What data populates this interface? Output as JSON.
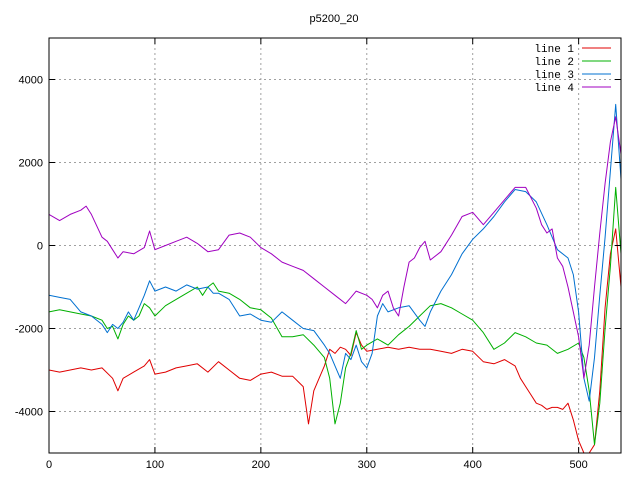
{
  "chart_data": {
    "type": "line",
    "title": "p5200_20",
    "xlabel": "",
    "ylabel": "",
    "xlim": [
      0,
      540
    ],
    "ylim": [
      -5000,
      5000
    ],
    "xticks": [
      0,
      100,
      200,
      300,
      400,
      500
    ],
    "yticks": [
      -4000,
      -2000,
      0,
      2000,
      4000
    ],
    "grid": true,
    "legend_position": "top-right",
    "series": [
      {
        "name": "line 1",
        "color": "#e00000",
        "points": [
          [
            0,
            -3000
          ],
          [
            10,
            -3050
          ],
          [
            20,
            -3000
          ],
          [
            30,
            -2950
          ],
          [
            40,
            -3000
          ],
          [
            50,
            -2950
          ],
          [
            60,
            -3200
          ],
          [
            65,
            -3500
          ],
          [
            70,
            -3200
          ],
          [
            80,
            -3050
          ],
          [
            90,
            -2900
          ],
          [
            95,
            -2750
          ],
          [
            100,
            -3100
          ],
          [
            110,
            -3050
          ],
          [
            120,
            -2950
          ],
          [
            130,
            -2900
          ],
          [
            140,
            -2850
          ],
          [
            150,
            -3050
          ],
          [
            160,
            -2800
          ],
          [
            170,
            -3000
          ],
          [
            180,
            -3200
          ],
          [
            190,
            -3250
          ],
          [
            200,
            -3100
          ],
          [
            210,
            -3050
          ],
          [
            220,
            -3150
          ],
          [
            230,
            -3150
          ],
          [
            240,
            -3400
          ],
          [
            245,
            -4300
          ],
          [
            250,
            -3500
          ],
          [
            255,
            -3200
          ],
          [
            260,
            -2900
          ],
          [
            265,
            -2500
          ],
          [
            270,
            -2600
          ],
          [
            275,
            -2450
          ],
          [
            280,
            -2500
          ],
          [
            285,
            -2650
          ],
          [
            290,
            -2100
          ],
          [
            295,
            -2400
          ],
          [
            300,
            -2550
          ],
          [
            310,
            -2500
          ],
          [
            320,
            -2450
          ],
          [
            330,
            -2500
          ],
          [
            340,
            -2450
          ],
          [
            350,
            -2500
          ],
          [
            360,
            -2500
          ],
          [
            370,
            -2550
          ],
          [
            380,
            -2600
          ],
          [
            390,
            -2500
          ],
          [
            400,
            -2550
          ],
          [
            410,
            -2800
          ],
          [
            420,
            -2850
          ],
          [
            430,
            -2750
          ],
          [
            440,
            -2900
          ],
          [
            445,
            -3200
          ],
          [
            450,
            -3400
          ],
          [
            455,
            -3600
          ],
          [
            460,
            -3800
          ],
          [
            465,
            -3850
          ],
          [
            470,
            -3950
          ],
          [
            475,
            -3900
          ],
          [
            480,
            -3900
          ],
          [
            485,
            -3950
          ],
          [
            490,
            -3800
          ],
          [
            495,
            -4200
          ],
          [
            500,
            -4700
          ],
          [
            505,
            -5000
          ],
          [
            510,
            -5000
          ],
          [
            515,
            -4800
          ],
          [
            520,
            -3500
          ],
          [
            525,
            -1500
          ],
          [
            530,
            -200
          ],
          [
            535,
            400
          ],
          [
            540,
            -1000
          ]
        ]
      },
      {
        "name": "line 2",
        "color": "#00b000",
        "points": [
          [
            0,
            -1600
          ],
          [
            10,
            -1550
          ],
          [
            20,
            -1600
          ],
          [
            30,
            -1650
          ],
          [
            40,
            -1700
          ],
          [
            50,
            -1800
          ],
          [
            55,
            -2000
          ],
          [
            60,
            -1950
          ],
          [
            65,
            -2250
          ],
          [
            70,
            -1900
          ],
          [
            75,
            -1700
          ],
          [
            80,
            -1800
          ],
          [
            85,
            -1700
          ],
          [
            90,
            -1400
          ],
          [
            95,
            -1500
          ],
          [
            100,
            -1700
          ],
          [
            110,
            -1450
          ],
          [
            120,
            -1300
          ],
          [
            130,
            -1150
          ],
          [
            140,
            -1000
          ],
          [
            145,
            -1200
          ],
          [
            150,
            -1000
          ],
          [
            155,
            -900
          ],
          [
            160,
            -1100
          ],
          [
            170,
            -1150
          ],
          [
            180,
            -1300
          ],
          [
            190,
            -1500
          ],
          [
            200,
            -1550
          ],
          [
            210,
            -1750
          ],
          [
            220,
            -2200
          ],
          [
            230,
            -2200
          ],
          [
            240,
            -2150
          ],
          [
            250,
            -2400
          ],
          [
            260,
            -2700
          ],
          [
            265,
            -3200
          ],
          [
            270,
            -4300
          ],
          [
            275,
            -3800
          ],
          [
            280,
            -2950
          ],
          [
            285,
            -2600
          ],
          [
            290,
            -2050
          ],
          [
            295,
            -2500
          ],
          [
            300,
            -2400
          ],
          [
            310,
            -2250
          ],
          [
            320,
            -2400
          ],
          [
            330,
            -2150
          ],
          [
            340,
            -1950
          ],
          [
            350,
            -1700
          ],
          [
            360,
            -1450
          ],
          [
            370,
            -1400
          ],
          [
            380,
            -1500
          ],
          [
            390,
            -1650
          ],
          [
            400,
            -1800
          ],
          [
            410,
            -2100
          ],
          [
            420,
            -2500
          ],
          [
            430,
            -2350
          ],
          [
            440,
            -2100
          ],
          [
            450,
            -2200
          ],
          [
            460,
            -2350
          ],
          [
            470,
            -2400
          ],
          [
            480,
            -2600
          ],
          [
            490,
            -2500
          ],
          [
            500,
            -2350
          ],
          [
            505,
            -2700
          ],
          [
            510,
            -3500
          ],
          [
            515,
            -4800
          ],
          [
            520,
            -3800
          ],
          [
            525,
            -2000
          ],
          [
            530,
            -500
          ],
          [
            535,
            1400
          ],
          [
            540,
            -200
          ]
        ]
      },
      {
        "name": "line 3",
        "color": "#0070d0",
        "points": [
          [
            0,
            -1200
          ],
          [
            10,
            -1250
          ],
          [
            20,
            -1300
          ],
          [
            30,
            -1600
          ],
          [
            40,
            -1700
          ],
          [
            50,
            -1900
          ],
          [
            55,
            -2100
          ],
          [
            60,
            -1900
          ],
          [
            65,
            -2000
          ],
          [
            70,
            -1850
          ],
          [
            75,
            -1600
          ],
          [
            80,
            -1800
          ],
          [
            85,
            -1500
          ],
          [
            90,
            -1200
          ],
          [
            95,
            -850
          ],
          [
            100,
            -1100
          ],
          [
            110,
            -1000
          ],
          [
            120,
            -1100
          ],
          [
            130,
            -950
          ],
          [
            140,
            -1050
          ],
          [
            150,
            -1000
          ],
          [
            155,
            -1150
          ],
          [
            160,
            -1150
          ],
          [
            170,
            -1300
          ],
          [
            180,
            -1700
          ],
          [
            190,
            -1650
          ],
          [
            200,
            -1800
          ],
          [
            210,
            -1850
          ],
          [
            220,
            -1600
          ],
          [
            230,
            -1800
          ],
          [
            240,
            -2000
          ],
          [
            250,
            -2050
          ],
          [
            260,
            -2400
          ],
          [
            265,
            -2600
          ],
          [
            270,
            -2900
          ],
          [
            275,
            -3200
          ],
          [
            280,
            -2600
          ],
          [
            285,
            -2750
          ],
          [
            290,
            -2400
          ],
          [
            295,
            -2800
          ],
          [
            300,
            -2950
          ],
          [
            305,
            -2600
          ],
          [
            310,
            -1700
          ],
          [
            315,
            -1400
          ],
          [
            320,
            -1600
          ],
          [
            330,
            -1500
          ],
          [
            340,
            -1450
          ],
          [
            350,
            -1800
          ],
          [
            355,
            -1950
          ],
          [
            360,
            -1600
          ],
          [
            370,
            -1100
          ],
          [
            380,
            -700
          ],
          [
            390,
            -200
          ],
          [
            400,
            150
          ],
          [
            410,
            400
          ],
          [
            420,
            700
          ],
          [
            430,
            1050
          ],
          [
            440,
            1350
          ],
          [
            450,
            1300
          ],
          [
            460,
            1050
          ],
          [
            470,
            500
          ],
          [
            480,
            -100
          ],
          [
            490,
            -300
          ],
          [
            495,
            -700
          ],
          [
            500,
            -1600
          ],
          [
            505,
            -3200
          ],
          [
            510,
            -3750
          ],
          [
            515,
            -2700
          ],
          [
            520,
            -1200
          ],
          [
            525,
            200
          ],
          [
            530,
            1800
          ],
          [
            535,
            3400
          ],
          [
            540,
            1600
          ]
        ]
      },
      {
        "name": "line 4",
        "color": "#a000c0",
        "points": [
          [
            0,
            750
          ],
          [
            10,
            600
          ],
          [
            20,
            750
          ],
          [
            30,
            850
          ],
          [
            35,
            950
          ],
          [
            40,
            750
          ],
          [
            50,
            200
          ],
          [
            55,
            100
          ],
          [
            60,
            -100
          ],
          [
            65,
            -300
          ],
          [
            70,
            -150
          ],
          [
            80,
            -200
          ],
          [
            90,
            -50
          ],
          [
            95,
            350
          ],
          [
            100,
            -100
          ],
          [
            110,
            0
          ],
          [
            120,
            100
          ],
          [
            130,
            200
          ],
          [
            140,
            50
          ],
          [
            150,
            -150
          ],
          [
            160,
            -100
          ],
          [
            170,
            250
          ],
          [
            180,
            300
          ],
          [
            190,
            200
          ],
          [
            200,
            -50
          ],
          [
            210,
            -200
          ],
          [
            220,
            -400
          ],
          [
            230,
            -500
          ],
          [
            240,
            -600
          ],
          [
            250,
            -800
          ],
          [
            260,
            -1000
          ],
          [
            270,
            -1200
          ],
          [
            280,
            -1400
          ],
          [
            285,
            -1250
          ],
          [
            290,
            -1100
          ],
          [
            300,
            -1200
          ],
          [
            305,
            -1300
          ],
          [
            310,
            -1500
          ],
          [
            315,
            -1200
          ],
          [
            320,
            -1100
          ],
          [
            325,
            -1500
          ],
          [
            330,
            -1700
          ],
          [
            335,
            -1000
          ],
          [
            340,
            -400
          ],
          [
            345,
            -300
          ],
          [
            350,
            -50
          ],
          [
            355,
            100
          ],
          [
            360,
            -350
          ],
          [
            370,
            -150
          ],
          [
            380,
            250
          ],
          [
            390,
            700
          ],
          [
            400,
            800
          ],
          [
            410,
            500
          ],
          [
            420,
            800
          ],
          [
            430,
            1100
          ],
          [
            440,
            1400
          ],
          [
            450,
            1400
          ],
          [
            460,
            900
          ],
          [
            465,
            500
          ],
          [
            470,
            300
          ],
          [
            475,
            400
          ],
          [
            480,
            -300
          ],
          [
            485,
            -500
          ],
          [
            490,
            -1000
          ],
          [
            495,
            -1600
          ],
          [
            500,
            -2200
          ],
          [
            505,
            -3200
          ],
          [
            510,
            -2400
          ],
          [
            515,
            -1000
          ],
          [
            520,
            300
          ],
          [
            525,
            1500
          ],
          [
            530,
            2500
          ],
          [
            535,
            3100
          ],
          [
            540,
            2200
          ]
        ]
      }
    ]
  }
}
